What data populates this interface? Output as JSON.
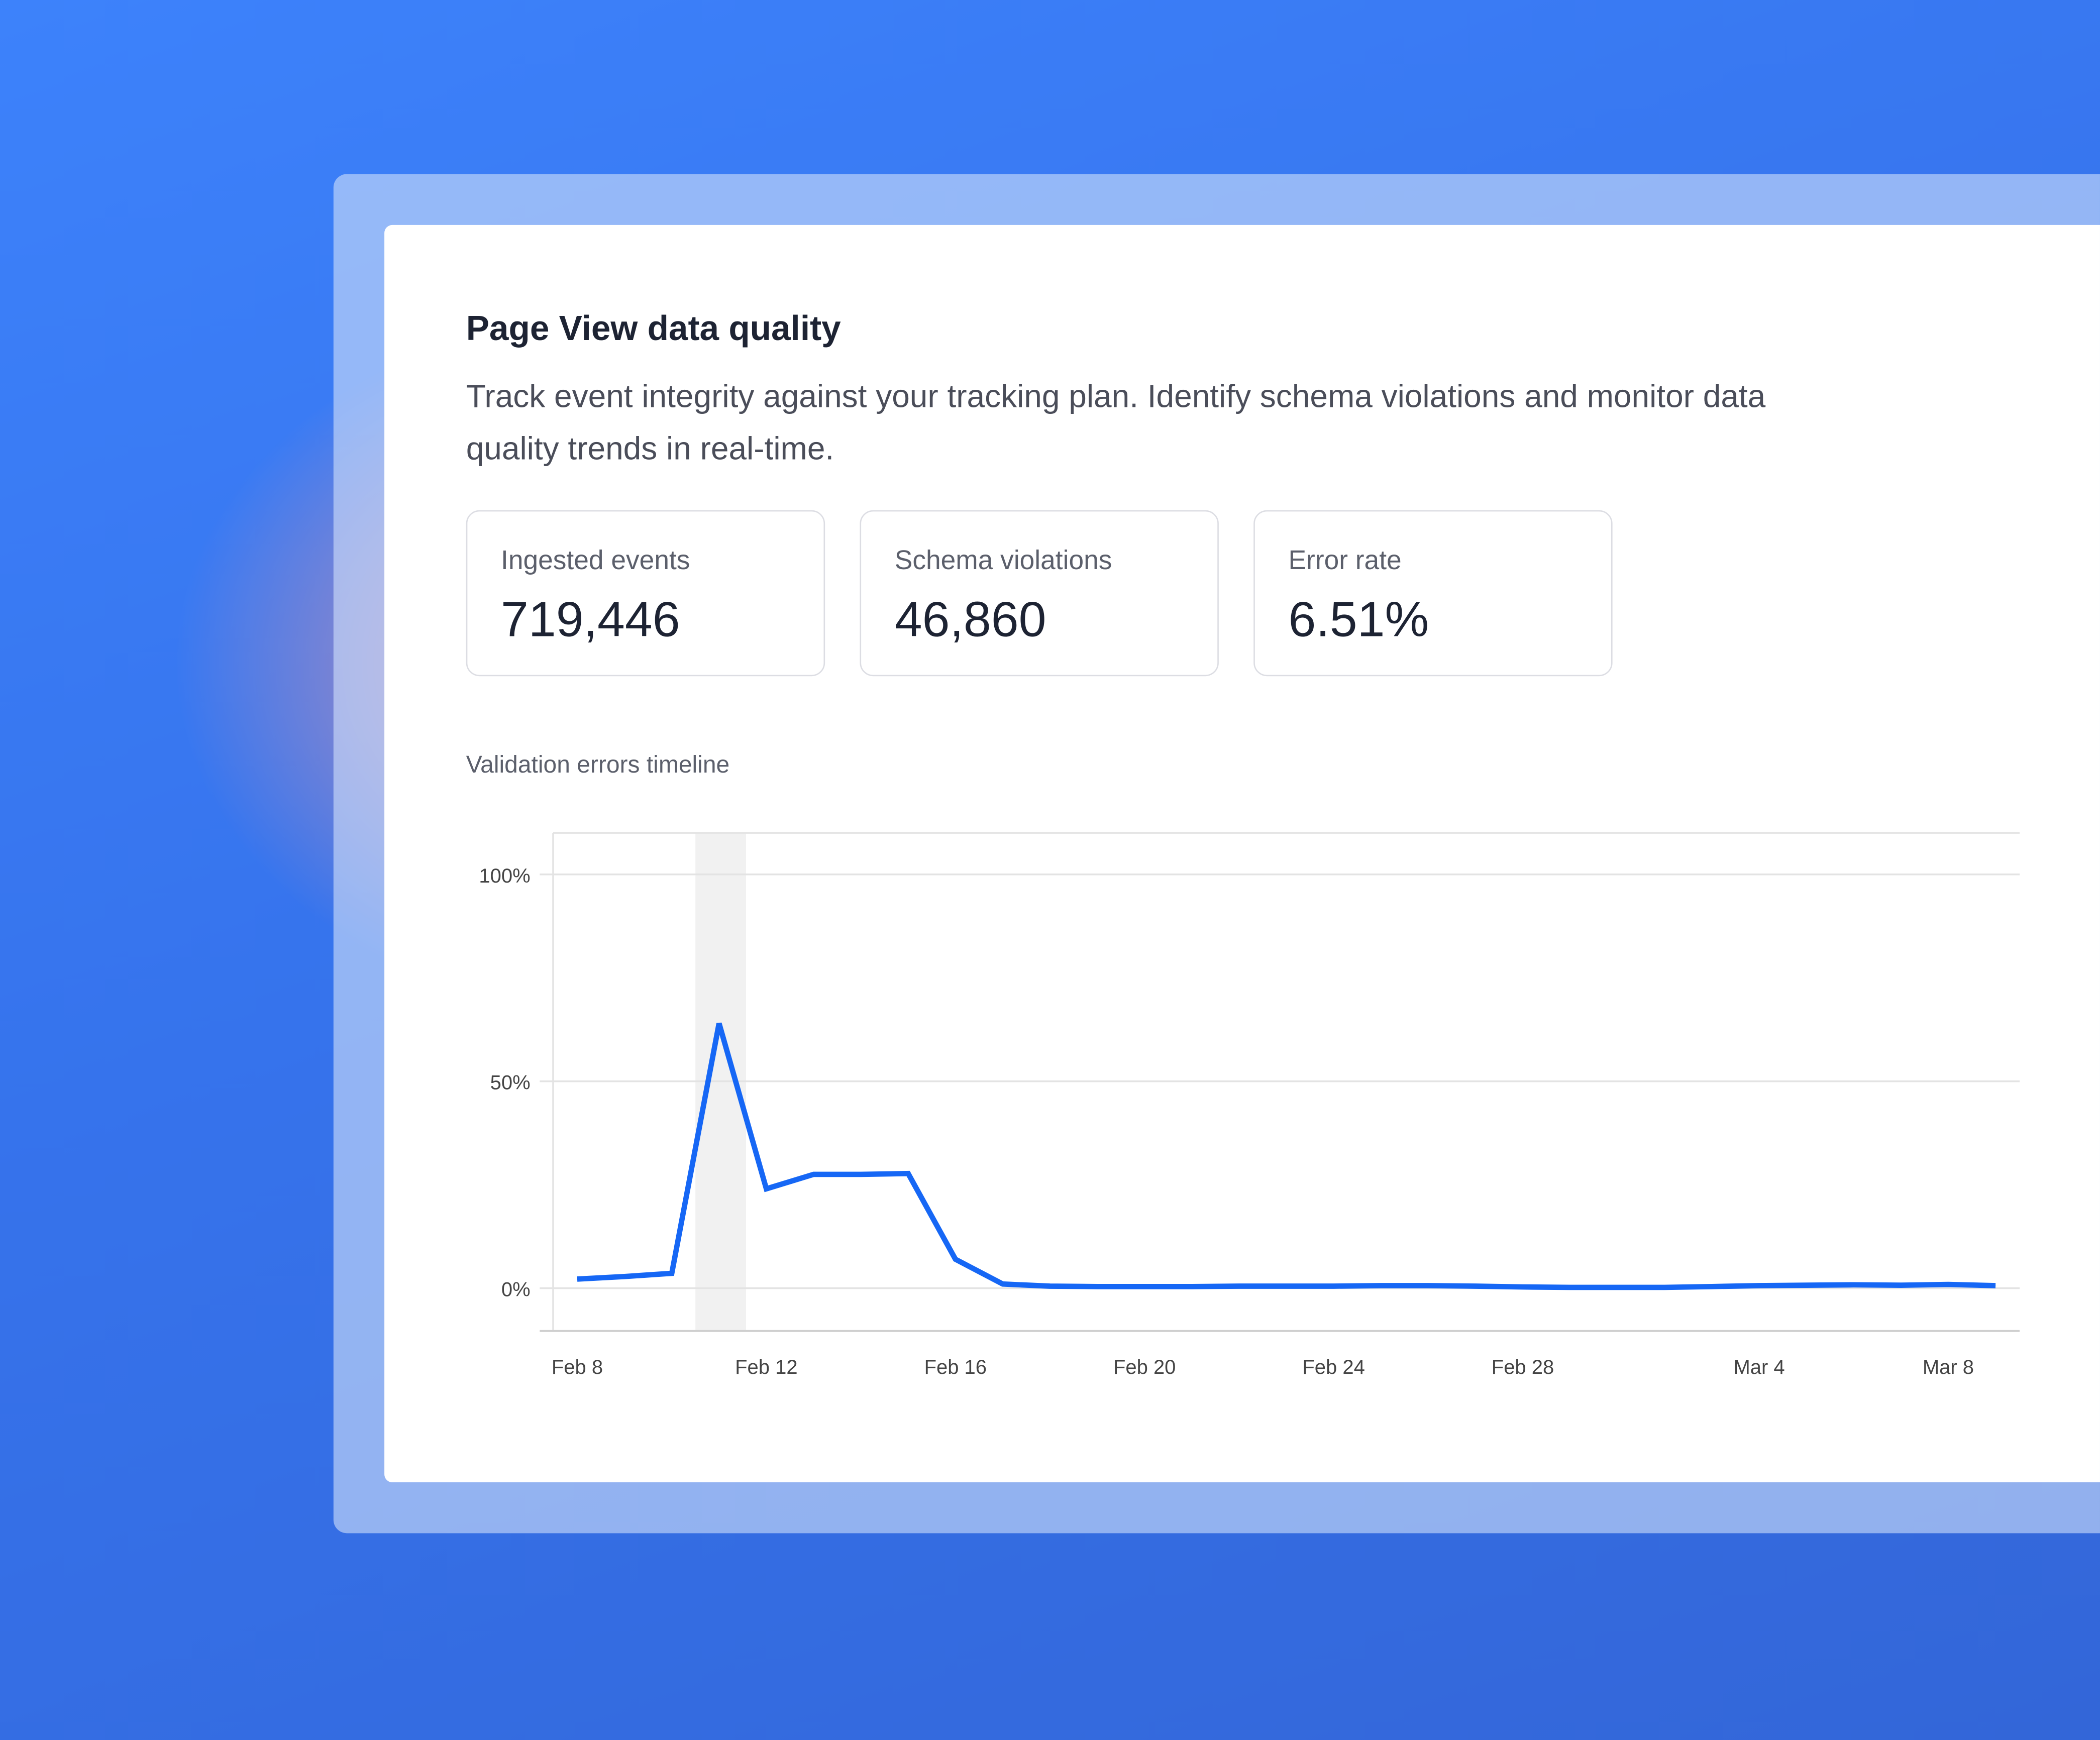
{
  "header": {
    "title": "Page View data quality",
    "description": "Track event integrity against your tracking plan. Identify schema violations and monitor data quality trends in real-time."
  },
  "stats": [
    {
      "label": "Ingested events",
      "value": "719,446"
    },
    {
      "label": "Schema violations",
      "value": "46,860"
    },
    {
      "label": "Error rate",
      "value": "6.51%"
    }
  ],
  "colors": {
    "line": "#1667f5",
    "highlight": "#f1f1f1",
    "grid": "#e3e3e3"
  },
  "chart_data": {
    "type": "line",
    "title": "Validation errors timeline",
    "xlabel": "",
    "ylabel": "",
    "x_start": "Feb 8",
    "x_end": "Mar 9",
    "x_tick_labels": [
      "Feb 8",
      "Feb 12",
      "Feb 16",
      "Feb 20",
      "Feb 24",
      "Feb 28",
      "Mar 4",
      "Mar 8"
    ],
    "y_tick_labels": [
      "0%",
      "50%",
      "100%"
    ],
    "y_ticks": [
      0,
      50,
      100
    ],
    "ylim": [
      -10,
      110
    ],
    "grid": true,
    "highlight_date": "Feb 11",
    "dates": [
      "Feb 8",
      "Feb 9",
      "Feb 10",
      "Feb 11",
      "Feb 12",
      "Feb 13",
      "Feb 14",
      "Feb 15",
      "Feb 16",
      "Feb 17",
      "Feb 18",
      "Feb 19",
      "Feb 20",
      "Feb 21",
      "Feb 22",
      "Feb 23",
      "Feb 24",
      "Feb 25",
      "Feb 26",
      "Feb 27",
      "Feb 28",
      "Feb 29",
      "Mar 1",
      "Mar 2",
      "Mar 3",
      "Mar 4",
      "Mar 5",
      "Mar 6",
      "Mar 7",
      "Mar 8",
      "Mar 9"
    ],
    "values": [
      2.2,
      2.8,
      3.6,
      64,
      24,
      27.5,
      27.5,
      27.7,
      7,
      1,
      0.5,
      0.4,
      0.4,
      0.4,
      0.5,
      0.5,
      0.5,
      0.6,
      0.6,
      0.5,
      0.3,
      0.2,
      0.2,
      0.2,
      0.4,
      0.6,
      0.7,
      0.8,
      0.7,
      0.9,
      0.6
    ]
  }
}
